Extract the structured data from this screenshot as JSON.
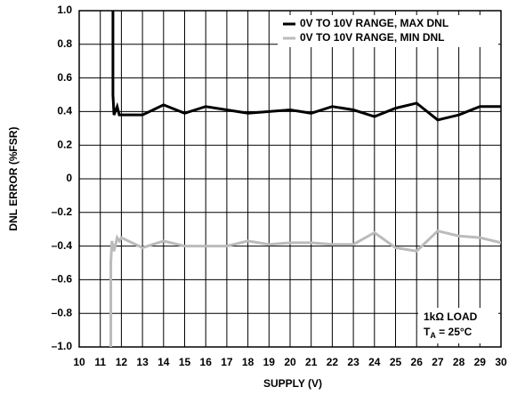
{
  "chart_data": {
    "type": "line",
    "xlabel": "SUPPLY (V)",
    "ylabel": "DNL ERROR (%FSR)",
    "series": [
      {
        "name": "0V TO 10V RANGE, MAX DNL",
        "color": "#000000",
        "x": [
          11.6,
          11.6,
          11.65,
          11.8,
          11.9,
          12,
          13,
          14,
          15,
          16,
          17,
          18,
          19,
          20,
          21,
          22,
          23,
          24,
          25,
          26,
          27,
          28,
          29,
          30
        ],
        "values": [
          1.0,
          0.5,
          0.38,
          0.43,
          0.38,
          0.38,
          0.38,
          0.44,
          0.39,
          0.43,
          0.41,
          0.39,
          0.4,
          0.41,
          0.39,
          0.43,
          0.41,
          0.37,
          0.42,
          0.45,
          0.35,
          0.38,
          0.43,
          0.43
        ]
      },
      {
        "name": "0V TO 10V RANGE, MIN DNL",
        "color": "#bbbbbb",
        "x": [
          11.5,
          11.5,
          11.55,
          11.65,
          11.8,
          11.9,
          12,
          13,
          14,
          15,
          16,
          17,
          18,
          19,
          20,
          21,
          22,
          23,
          24,
          25,
          26,
          27,
          28,
          29,
          30
        ],
        "values": [
          -1.0,
          -0.5,
          -0.37,
          -0.43,
          -0.35,
          -0.37,
          -0.35,
          -0.41,
          -0.37,
          -0.4,
          -0.4,
          -0.4,
          -0.37,
          -0.39,
          -0.38,
          -0.38,
          -0.39,
          -0.39,
          -0.32,
          -0.41,
          -0.43,
          -0.31,
          -0.34,
          -0.35,
          -0.38
        ]
      }
    ],
    "xlim": [
      10,
      30
    ],
    "xticks": [
      10,
      11,
      12,
      13,
      14,
      15,
      16,
      17,
      18,
      19,
      20,
      21,
      22,
      23,
      24,
      25,
      26,
      27,
      28,
      29,
      30
    ],
    "ylim": [
      -1,
      1
    ],
    "yticks": [
      {
        "value": -1,
        "label": "–1.0"
      },
      {
        "value": -0.8,
        "label": "–0.8"
      },
      {
        "value": -0.6,
        "label": "–0.6"
      },
      {
        "value": -0.4,
        "label": "–0.4"
      },
      {
        "value": -0.2,
        "label": "–0.2"
      },
      0,
      0.2,
      0.4,
      0.6,
      0.8,
      {
        "value": 1,
        "label": "1.0"
      }
    ],
    "grid": true,
    "legend": "top-right",
    "annotation": {
      "line1": "1kΩ LOAD",
      "symbol": "T",
      "subscript": "A",
      "rest": " = 25°C"
    }
  }
}
